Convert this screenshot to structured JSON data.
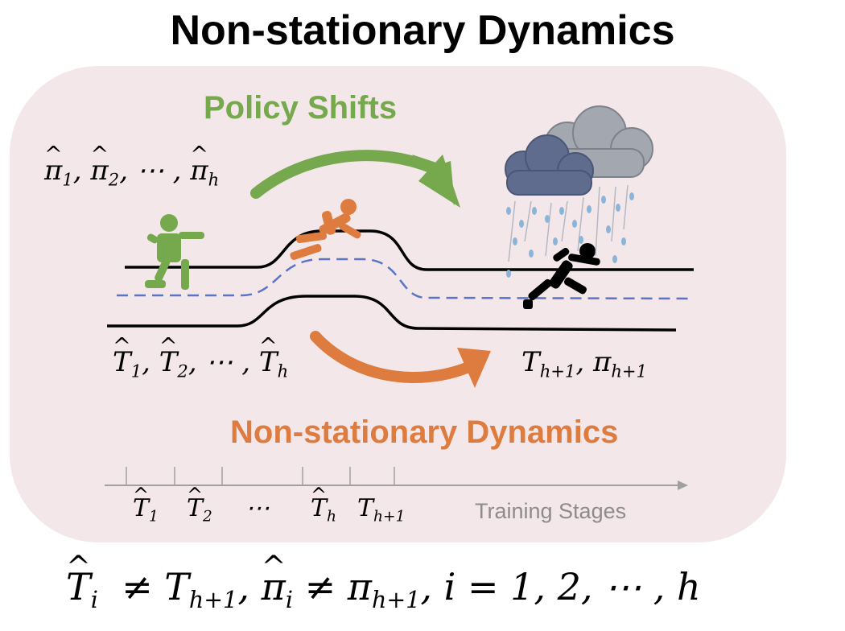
{
  "title": "Non-stationary Dynamics",
  "labels": {
    "policy_shifts": "Policy Shifts",
    "non_stationary": "Non-stationary Dynamics",
    "training_stages": "Training Stages"
  },
  "math": {
    "policies_prefix": "π",
    "policies_dots": "⋯",
    "dynamics_prefix": "T",
    "next_T": "T",
    "next_pi": "π",
    "sub_1": "1",
    "sub_2": "2",
    "sub_h": "h",
    "sub_h1": "h+1",
    "sub_i": "i",
    "formula_tail": "i = 1, 2, ⋯ , h",
    "neq": "≠",
    "dots": "⋯"
  },
  "colors": {
    "panel": "#f4e7e9",
    "green": "#76a84d",
    "orange": "#dd7c3e",
    "dash": "#5a74c8",
    "cloud": "#6e7b99",
    "rain": "#8ab4d8"
  },
  "icons": [
    "throwing-figure-icon",
    "crouching-runner-icon",
    "running-figure-icon",
    "rain-cloud-icon"
  ]
}
